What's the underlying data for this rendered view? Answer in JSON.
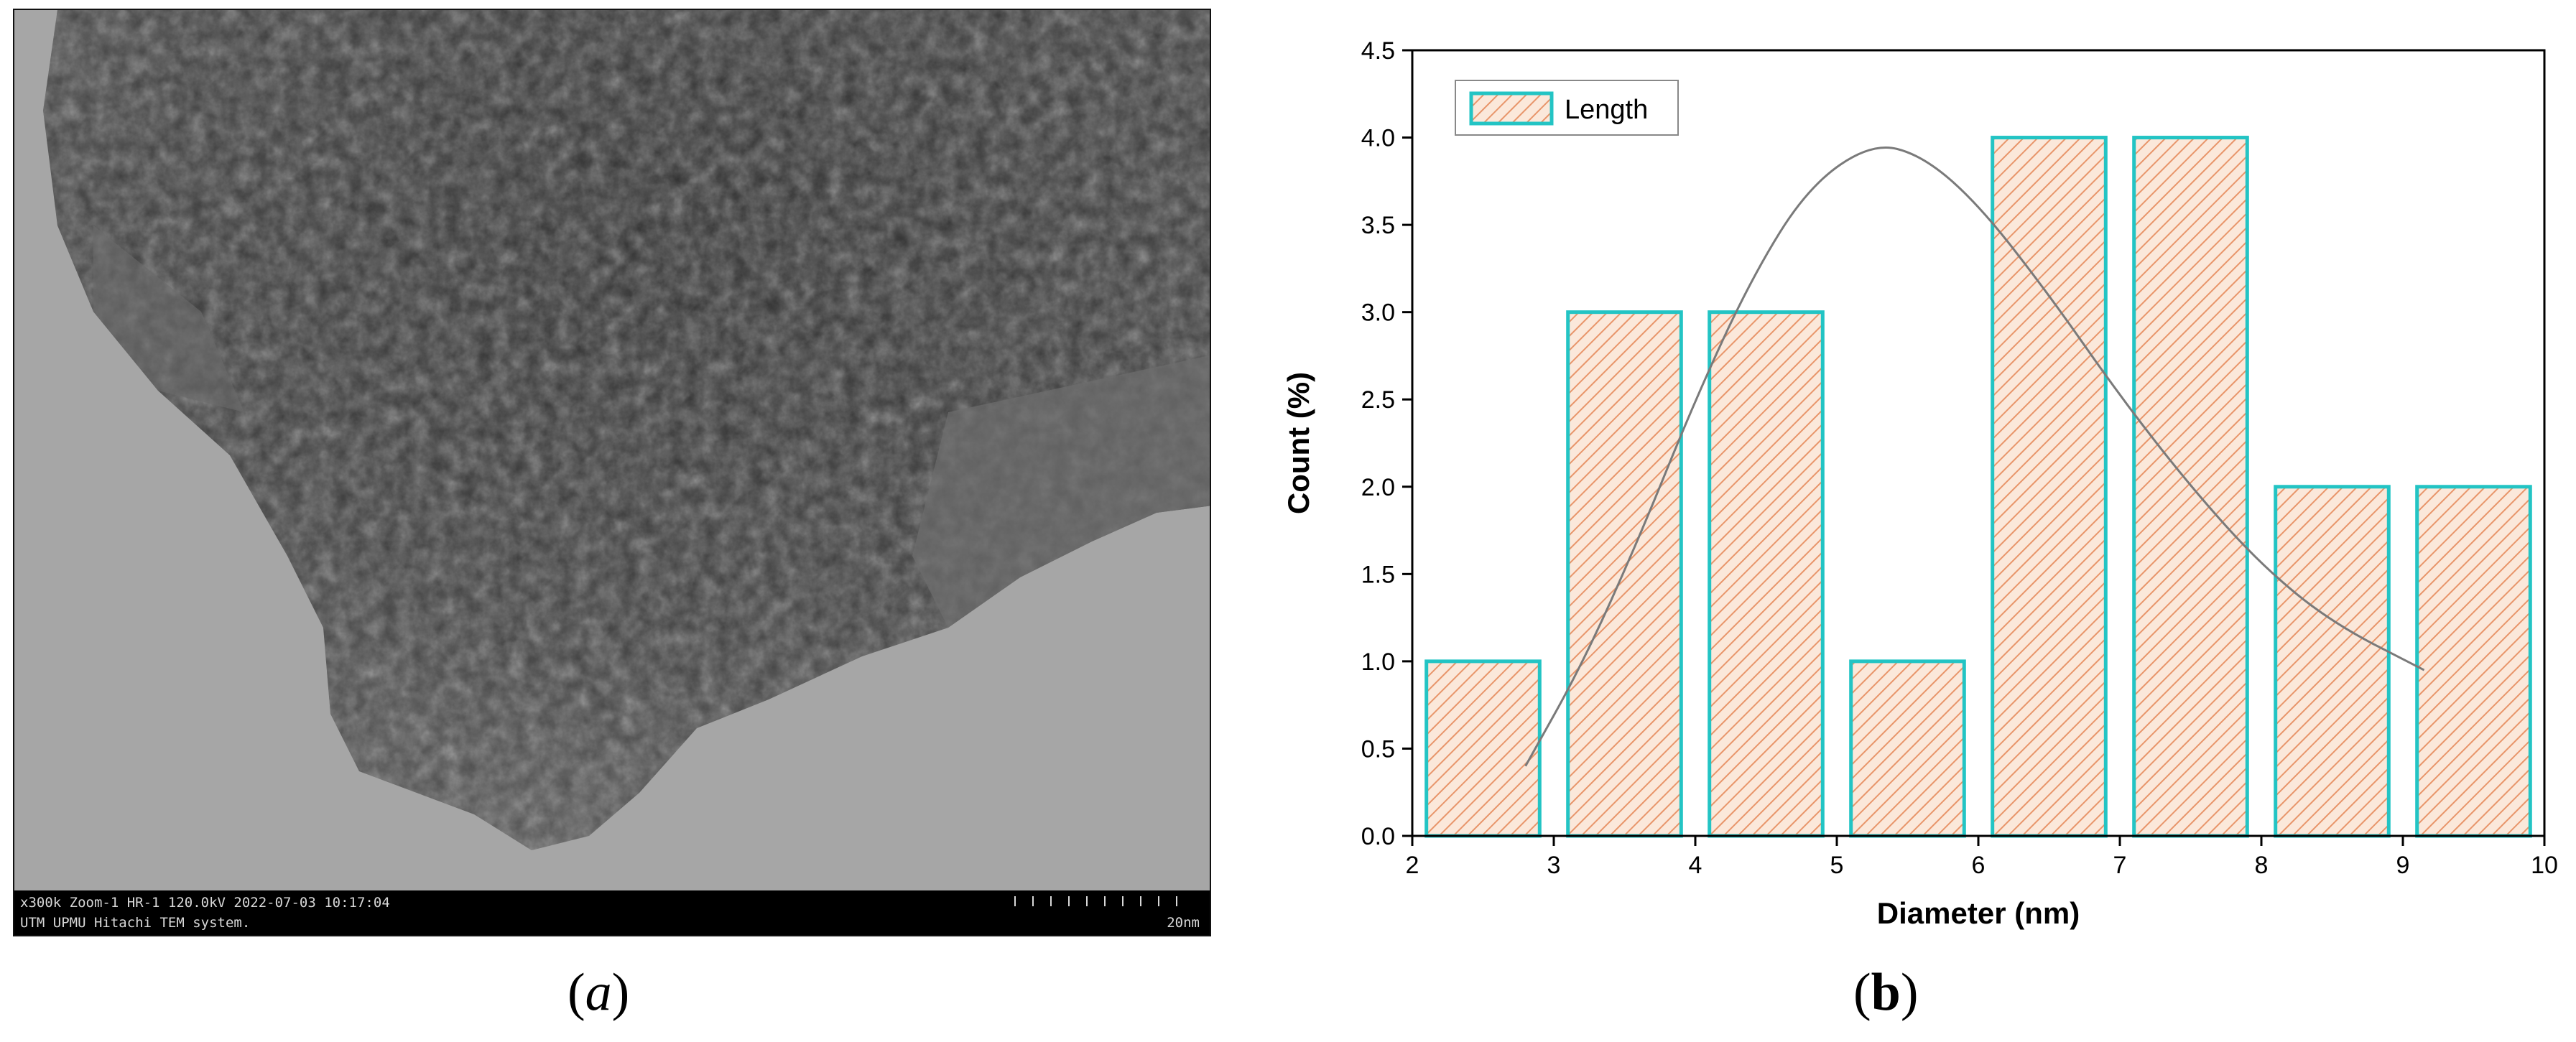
{
  "panel_a": {
    "label_prefix": "(",
    "label_letter": "a",
    "label_suffix": ")",
    "info_line1": "x300k Zoom-1 HR-1 120.0kV 2022-07-03 10:17:04",
    "info_line2": "UTM UPMU Hitachi TEM system.",
    "scale_text": "20nm"
  },
  "panel_b": {
    "label_prefix": "(",
    "label_letter": "b",
    "label_suffix": ")"
  },
  "chart_data": {
    "type": "bar",
    "xlabel": "Diameter (nm)",
    "ylabel": "Count (%)",
    "xlim": [
      2,
      10
    ],
    "ylim": [
      0,
      4.5
    ],
    "xticks": [
      "2",
      "3",
      "4",
      "5",
      "6",
      "7",
      "8",
      "9",
      "10"
    ],
    "yticks": [
      "0.0",
      "0.5",
      "1.0",
      "1.5",
      "2.0",
      "2.5",
      "3.0",
      "3.5",
      "4.0",
      "4.5"
    ],
    "bins": [
      {
        "from": 2.1,
        "to": 2.9,
        "value": 1
      },
      {
        "from": 3.1,
        "to": 3.9,
        "value": 3
      },
      {
        "from": 4.1,
        "to": 4.9,
        "value": 3
      },
      {
        "from": 5.1,
        "to": 5.9,
        "value": 1
      },
      {
        "from": 6.1,
        "to": 6.9,
        "value": 4
      },
      {
        "from": 7.1,
        "to": 7.9,
        "value": 4
      },
      {
        "from": 8.1,
        "to": 8.9,
        "value": 2
      },
      {
        "from": 9.1,
        "to": 9.9,
        "value": 2
      }
    ],
    "fit_curve": {
      "x": [
        2.8,
        3.2,
        3.6,
        4.0,
        4.4,
        4.8,
        5.25,
        5.6,
        6.0,
        6.5,
        7.0,
        7.5,
        8.0,
        8.5,
        9.15
      ],
      "y": [
        0.4,
        0.98,
        1.7,
        2.5,
        3.2,
        3.72,
        3.97,
        3.9,
        3.62,
        3.1,
        2.52,
        2.0,
        1.55,
        1.22,
        0.95
      ]
    },
    "legend": {
      "label": "Length",
      "position": "top-left"
    },
    "colors": {
      "bar_edge": "#23c4c4",
      "hatch": "#e8956a",
      "bar_fill": "#fbe8da",
      "curve": "#7a7a7a"
    }
  }
}
